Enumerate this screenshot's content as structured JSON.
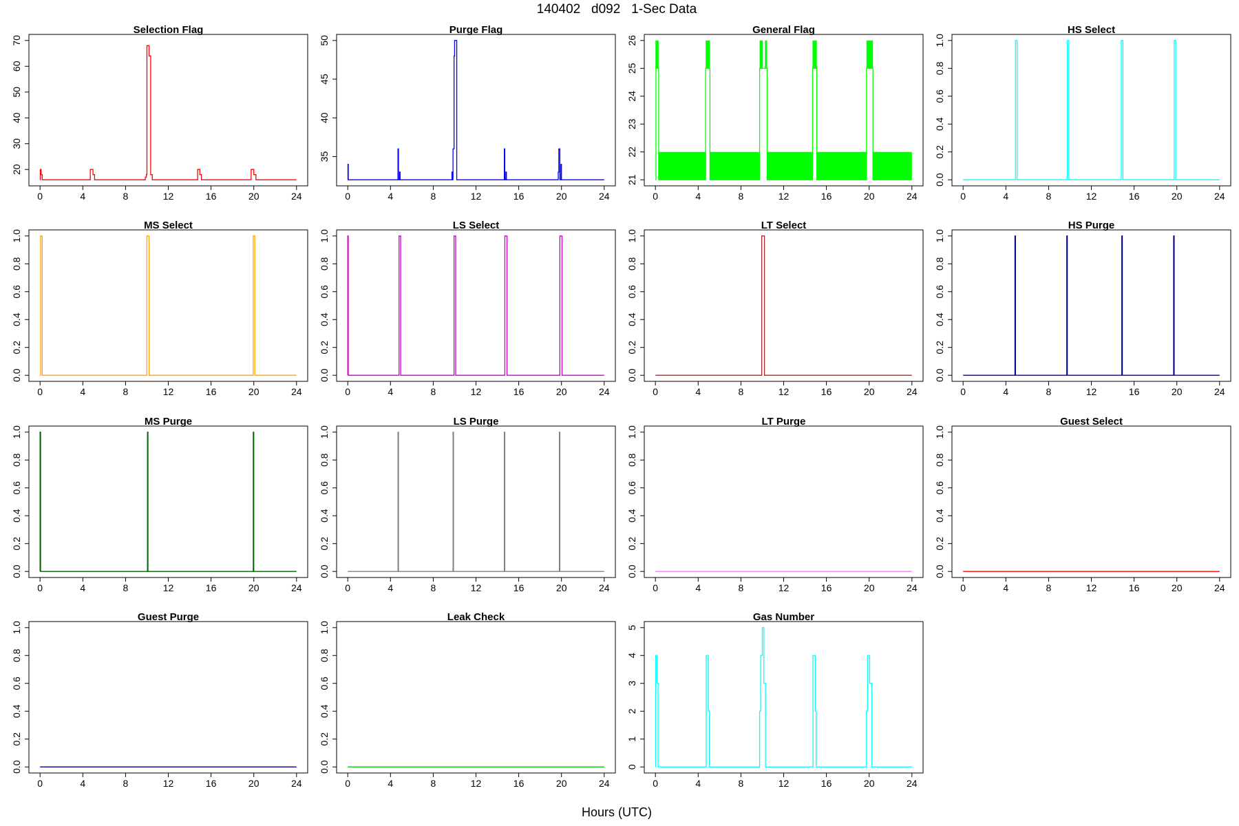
{
  "page": {
    "title": "140402   d092   1-Sec Data",
    "xlabel": "Hours (UTC)"
  },
  "chart_data": [
    {
      "title": "Selection Flag",
      "type": "line",
      "color": "#ff0000",
      "xlim": [
        0,
        24
      ],
      "ylim": [
        16,
        70
      ],
      "xticks": [
        0,
        4,
        8,
        12,
        16,
        20,
        24
      ],
      "yticks": [
        20,
        30,
        40,
        50,
        60,
        70
      ],
      "x": [
        0,
        0.02,
        0.02,
        0.1,
        0.1,
        0.2,
        0.2,
        4.7,
        4.7,
        4.95,
        4.95,
        5.1,
        5.1,
        9.85,
        9.85,
        9.95,
        9.95,
        10.0,
        10.0,
        10.2,
        10.2,
        10.35,
        10.35,
        10.5,
        10.5,
        14.75,
        14.75,
        14.95,
        14.95,
        15.1,
        15.1,
        19.75,
        19.75,
        20.0,
        20.0,
        20.2,
        20.2,
        24
      ],
      "y": [
        16,
        16,
        20,
        20,
        18,
        18,
        16,
        16,
        20,
        20,
        18,
        18,
        16,
        16,
        17,
        17,
        18,
        18,
        68,
        68,
        64,
        64,
        18,
        18,
        16,
        16,
        20,
        20,
        18,
        18,
        16,
        16,
        20,
        20,
        18,
        18,
        16,
        16
      ]
    },
    {
      "title": "Purge Flag",
      "type": "line",
      "color": "#0000ff",
      "xlim": [
        0,
        24
      ],
      "ylim": [
        32,
        50
      ],
      "xticks": [
        0,
        4,
        8,
        12,
        16,
        20,
        24
      ],
      "yticks": [
        35,
        40,
        45,
        50
      ],
      "x": [
        0,
        0.02,
        0.02,
        0.05,
        0.05,
        4.7,
        4.7,
        4.75,
        4.75,
        4.85,
        4.85,
        4.9,
        4.9,
        9.75,
        9.75,
        9.8,
        9.8,
        9.85,
        9.85,
        9.95,
        9.95,
        10.0,
        10.0,
        10.2,
        10.2,
        10.3,
        10.3,
        14.65,
        14.65,
        14.7,
        14.7,
        14.8,
        14.8,
        14.85,
        14.85,
        19.7,
        19.7,
        19.75,
        19.75,
        19.85,
        19.85,
        19.95,
        19.95,
        20.0,
        20.0,
        24
      ],
      "y": [
        32,
        32,
        34,
        34,
        32,
        32,
        36,
        36,
        32,
        32,
        33,
        33,
        32,
        32,
        33,
        33,
        32,
        32,
        36,
        36,
        48,
        48,
        50,
        50,
        32,
        32,
        32,
        32,
        36,
        36,
        32,
        32,
        33,
        33,
        32,
        32,
        33,
        33,
        36,
        36,
        32,
        32,
        34,
        34,
        32,
        32
      ]
    },
    {
      "title": "General Flag",
      "type": "line",
      "color": "#00ff00",
      "xlim": [
        0,
        24
      ],
      "ylim": [
        21,
        26
      ],
      "xticks": [
        0,
        4,
        8,
        12,
        16,
        20,
        24
      ],
      "yticks": [
        21,
        22,
        23,
        24,
        25,
        26
      ],
      "fill_bands": [
        [
          0.3,
          4.7,
          21,
          22
        ],
        [
          5.1,
          9.8,
          21,
          22
        ],
        [
          10.45,
          14.7,
          21,
          22
        ],
        [
          15.1,
          19.75,
          21,
          22
        ],
        [
          20.35,
          24,
          21,
          22
        ],
        [
          0.0,
          0.3,
          25,
          26
        ],
        [
          4.7,
          5.1,
          25,
          26
        ],
        [
          9.75,
          10.05,
          25,
          26
        ],
        [
          10.25,
          10.45,
          25,
          26
        ],
        [
          14.7,
          15.1,
          25,
          26
        ],
        [
          19.75,
          20.35,
          25,
          26
        ]
      ],
      "x": [
        0,
        0.05,
        0.05,
        0.3,
        0.3,
        4.7,
        4.7,
        5.1,
        5.1,
        9.75,
        9.75,
        10.45,
        10.45,
        14.7,
        14.7,
        15.1,
        15.1,
        19.75,
        19.75,
        20.35,
        20.35,
        24
      ],
      "y": [
        21,
        21,
        25,
        25,
        21,
        21,
        25,
        25,
        21,
        21,
        25,
        25,
        21,
        21,
        25,
        25,
        21,
        21,
        25,
        25,
        21,
        21
      ]
    },
    {
      "title": "HS Select",
      "type": "line",
      "color": "#00ffff",
      "xlim": [
        0,
        24
      ],
      "ylim": [
        0,
        1
      ],
      "xticks": [
        0,
        4,
        8,
        12,
        16,
        20,
        24
      ],
      "yticks": [
        0.0,
        0.2,
        0.4,
        0.6,
        0.8,
        1.0
      ],
      "x": [
        0,
        4.9,
        4.9,
        5.05,
        5.05,
        9.75,
        9.75,
        9.9,
        9.9,
        14.8,
        14.8,
        14.95,
        14.95,
        19.75,
        19.75,
        19.9,
        19.9,
        24
      ],
      "y": [
        0,
        0,
        1,
        1,
        0,
        0,
        1,
        1,
        0,
        0,
        1,
        1,
        0,
        0,
        1,
        1,
        0,
        0
      ]
    },
    {
      "title": "MS Select",
      "type": "line",
      "color": "#ffa500",
      "xlim": [
        0,
        24
      ],
      "ylim": [
        0,
        1
      ],
      "xticks": [
        0,
        4,
        8,
        12,
        16,
        20,
        24
      ],
      "yticks": [
        0.0,
        0.2,
        0.4,
        0.6,
        0.8,
        1.0
      ],
      "x": [
        0,
        0.05,
        0.05,
        0.2,
        0.2,
        10.0,
        10.0,
        10.2,
        10.2,
        19.95,
        19.95,
        20.1,
        20.1,
        24
      ],
      "y": [
        0,
        0,
        1,
        1,
        0,
        0,
        1,
        1,
        0,
        0,
        1,
        1,
        0,
        0
      ]
    },
    {
      "title": "LS Select",
      "type": "line",
      "color": "#cc00cc",
      "xlim": [
        0,
        24
      ],
      "ylim": [
        0,
        1
      ],
      "xticks": [
        0,
        4,
        8,
        12,
        16,
        20,
        24
      ],
      "yticks": [
        0.0,
        0.2,
        0.4,
        0.6,
        0.8,
        1.0
      ],
      "x": [
        0,
        0,
        0,
        0.05,
        0.05,
        4.8,
        4.8,
        4.95,
        4.95,
        9.95,
        9.95,
        10.1,
        10.1,
        14.7,
        14.7,
        14.9,
        14.9,
        19.85,
        19.85,
        20.05,
        20.05,
        24
      ],
      "y": [
        0,
        0,
        1,
        1,
        0,
        0,
        1,
        1,
        0,
        0,
        1,
        1,
        0,
        0,
        1,
        1,
        0,
        0,
        1,
        1,
        0,
        0
      ]
    },
    {
      "title": "LT Select",
      "type": "line",
      "color": "#a52a2a",
      "xlim": [
        0,
        24
      ],
      "ylim": [
        0,
        1
      ],
      "xticks": [
        0,
        4,
        8,
        12,
        16,
        20,
        24
      ],
      "yticks": [
        0.0,
        0.2,
        0.4,
        0.6,
        0.8,
        1.0
      ],
      "x": [
        0,
        9.95,
        9.95,
        10.2,
        10.2,
        24
      ],
      "y": [
        0,
        0,
        1,
        1,
        0,
        0
      ]
    },
    {
      "title": "HS Purge",
      "type": "line",
      "color": "#00008b",
      "xlim": [
        0,
        24
      ],
      "ylim": [
        0,
        1
      ],
      "xticks": [
        0,
        4,
        8,
        12,
        16,
        20,
        24
      ],
      "yticks": [
        0.0,
        0.2,
        0.4,
        0.6,
        0.8,
        1.0
      ],
      "x": [
        0,
        4.85,
        4.85,
        4.9,
        4.9,
        9.7,
        9.7,
        9.75,
        9.75,
        14.85,
        14.85,
        14.9,
        14.9,
        19.7,
        19.7,
        19.75,
        19.75,
        24
      ],
      "y": [
        0,
        0,
        1,
        1,
        0,
        0,
        1,
        1,
        0,
        0,
        1,
        1,
        0,
        0,
        1,
        1,
        0,
        0
      ]
    },
    {
      "title": "MS Purge",
      "type": "line",
      "color": "#006400",
      "xlim": [
        0,
        24
      ],
      "ylim": [
        0,
        1
      ],
      "xticks": [
        0,
        4,
        8,
        12,
        16,
        20,
        24
      ],
      "yticks": [
        0.0,
        0.2,
        0.4,
        0.6,
        0.8,
        1.0
      ],
      "x": [
        0,
        0.0,
        0.0,
        0.05,
        0.05,
        10.05,
        10.05,
        10.1,
        10.1,
        19.95,
        19.95,
        20.0,
        20.0,
        24
      ],
      "y": [
        0,
        0,
        1,
        1,
        0,
        0,
        1,
        1,
        0,
        0,
        1,
        1,
        0,
        0
      ]
    },
    {
      "title": "LS Purge",
      "type": "line",
      "color": "#808080",
      "xlim": [
        0,
        24
      ],
      "ylim": [
        0,
        1
      ],
      "xticks": [
        0,
        4,
        8,
        12,
        16,
        20,
        24
      ],
      "yticks": [
        0.0,
        0.2,
        0.4,
        0.6,
        0.8,
        1.0
      ],
      "x": [
        0,
        4.7,
        4.7,
        4.75,
        4.75,
        9.85,
        9.85,
        9.9,
        9.9,
        14.65,
        14.65,
        14.7,
        14.7,
        19.8,
        19.8,
        19.85,
        19.85,
        24
      ],
      "y": [
        0,
        0,
        1,
        1,
        0,
        0,
        1,
        1,
        0,
        0,
        1,
        1,
        0,
        0,
        1,
        1,
        0,
        0
      ]
    },
    {
      "title": "LT Purge",
      "type": "line",
      "color": "#ee82ee",
      "xlim": [
        0,
        24
      ],
      "ylim": [
        0,
        1
      ],
      "xticks": [
        0,
        4,
        8,
        12,
        16,
        20,
        24
      ],
      "yticks": [
        0.0,
        0.2,
        0.4,
        0.6,
        0.8,
        1.0
      ],
      "x": [
        0,
        24
      ],
      "y": [
        0,
        0
      ]
    },
    {
      "title": "Guest Select",
      "type": "line",
      "color": "#ff0000",
      "xlim": [
        0,
        24
      ],
      "ylim": [
        0,
        1
      ],
      "xticks": [
        0,
        4,
        8,
        12,
        16,
        20,
        24
      ],
      "yticks": [
        0.0,
        0.2,
        0.4,
        0.6,
        0.8,
        1.0
      ],
      "x": [
        0,
        24
      ],
      "y": [
        0,
        0
      ]
    },
    {
      "title": "Guest Purge",
      "type": "line",
      "color": "#00008b",
      "xlim": [
        0,
        24
      ],
      "ylim": [
        0,
        1
      ],
      "xticks": [
        0,
        4,
        8,
        12,
        16,
        20,
        24
      ],
      "yticks": [
        0.0,
        0.2,
        0.4,
        0.6,
        0.8,
        1.0
      ],
      "x": [
        0,
        24
      ],
      "y": [
        0,
        0
      ]
    },
    {
      "title": "Leak Check",
      "type": "line",
      "color": "#00cc00",
      "xlim": [
        0,
        24
      ],
      "ylim": [
        0,
        1
      ],
      "xticks": [
        0,
        4,
        8,
        12,
        16,
        20,
        24
      ],
      "yticks": [
        0.0,
        0.2,
        0.4,
        0.6,
        0.8,
        1.0
      ],
      "x": [
        0,
        24
      ],
      "y": [
        0,
        0
      ]
    },
    {
      "title": "Gas Number",
      "type": "line",
      "color": "#00ffff",
      "xlim": [
        0,
        24
      ],
      "ylim": [
        0,
        5
      ],
      "xticks": [
        0,
        4,
        8,
        12,
        16,
        20,
        24
      ],
      "yticks": [
        0,
        1,
        2,
        3,
        4,
        5
      ],
      "x": [
        0,
        0.02,
        0.02,
        0.15,
        0.15,
        0.25,
        0.25,
        4.75,
        4.75,
        4.95,
        4.95,
        5.05,
        5.05,
        9.75,
        9.75,
        9.85,
        9.85,
        10.0,
        10.0,
        10.15,
        10.15,
        10.3,
        10.3,
        14.75,
        14.75,
        14.95,
        14.95,
        15.05,
        15.05,
        19.75,
        19.75,
        19.85,
        19.85,
        20.05,
        20.05,
        20.25,
        20.25,
        24
      ],
      "y": [
        0,
        0,
        4,
        4,
        3,
        3,
        0,
        0,
        4,
        4,
        2,
        2,
        0,
        0,
        2,
        2,
        4,
        4,
        5,
        5,
        3,
        3,
        0,
        0,
        4,
        4,
        2,
        2,
        0,
        0,
        2,
        2,
        4,
        4,
        3,
        3,
        0,
        0
      ]
    }
  ]
}
